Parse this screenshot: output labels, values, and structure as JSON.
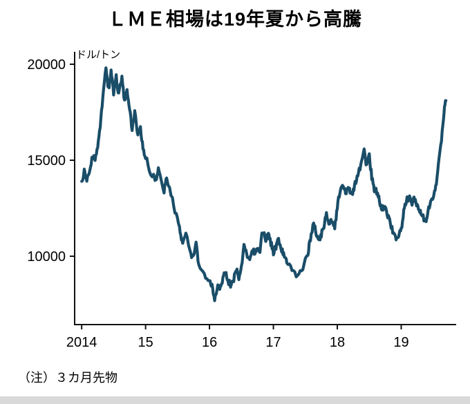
{
  "title": "ＬＭＥ相場は19年夏から高騰",
  "note": "（注）３カ月先物",
  "chart_data": {
    "type": "line",
    "title": "ＬＭＥ相場は19年夏から高騰",
    "unit_label": "ドル/トン",
    "note": "（注）３カ月先物",
    "line_color": "#1a4d68",
    "axis_color": "#111111",
    "grid": false,
    "legend": "none",
    "xlim": [
      2013.89,
      2019.86
    ],
    "ylim": [
      6440,
      20000
    ],
    "yticks": [
      {
        "value": 10000,
        "label": "10000"
      },
      {
        "value": 15000,
        "label": "15000"
      },
      {
        "value": 20000,
        "label": "20000"
      }
    ],
    "xticks": [
      {
        "value": 2014,
        "label": "2014"
      },
      {
        "value": 2015,
        "label": "15"
      },
      {
        "value": 2016,
        "label": "16"
      },
      {
        "value": 2017,
        "label": "17"
      },
      {
        "value": 2018,
        "label": "18"
      },
      {
        "value": 2019,
        "label": "19"
      }
    ],
    "points": [
      [
        2014.0,
        13900
      ],
      [
        2014.04,
        14400
      ],
      [
        2014.08,
        14050
      ],
      [
        2014.13,
        14500
      ],
      [
        2014.17,
        15200
      ],
      [
        2014.21,
        15000
      ],
      [
        2014.25,
        15600
      ],
      [
        2014.29,
        16800
      ],
      [
        2014.33,
        18300
      ],
      [
        2014.38,
        19800
      ],
      [
        2014.42,
        18700
      ],
      [
        2014.46,
        19600
      ],
      [
        2014.5,
        18500
      ],
      [
        2014.54,
        19300
      ],
      [
        2014.58,
        18400
      ],
      [
        2014.63,
        19400
      ],
      [
        2014.67,
        18000
      ],
      [
        2014.71,
        18700
      ],
      [
        2014.75,
        17600
      ],
      [
        2014.79,
        16600
      ],
      [
        2014.83,
        17500
      ],
      [
        2014.88,
        16300
      ],
      [
        2014.92,
        16700
      ],
      [
        2014.96,
        15600
      ],
      [
        2015.0,
        15200
      ],
      [
        2015.08,
        14300
      ],
      [
        2015.17,
        14000
      ],
      [
        2015.21,
        14600
      ],
      [
        2015.29,
        13400
      ],
      [
        2015.33,
        14100
      ],
      [
        2015.42,
        12900
      ],
      [
        2015.5,
        11900
      ],
      [
        2015.54,
        11300
      ],
      [
        2015.58,
        10700
      ],
      [
        2015.63,
        11300
      ],
      [
        2015.71,
        10100
      ],
      [
        2015.75,
        9900
      ],
      [
        2015.79,
        10600
      ],
      [
        2015.83,
        9600
      ],
      [
        2015.92,
        9000
      ],
      [
        2016.0,
        8700
      ],
      [
        2016.04,
        8400
      ],
      [
        2016.08,
        7700
      ],
      [
        2016.13,
        8600
      ],
      [
        2016.17,
        8350
      ],
      [
        2016.21,
        8800
      ],
      [
        2016.25,
        9200
      ],
      [
        2016.29,
        8700
      ],
      [
        2016.33,
        8500
      ],
      [
        2016.38,
        8800
      ],
      [
        2016.42,
        9300
      ],
      [
        2016.46,
        8900
      ],
      [
        2016.5,
        9400
      ],
      [
        2016.54,
        10600
      ],
      [
        2016.58,
        10200
      ],
      [
        2016.63,
        9700
      ],
      [
        2016.67,
        10300
      ],
      [
        2016.71,
        10200
      ],
      [
        2016.75,
        10400
      ],
      [
        2016.79,
        10300
      ],
      [
        2016.83,
        11300
      ],
      [
        2016.88,
        10900
      ],
      [
        2016.92,
        11100
      ],
      [
        2016.96,
        10700
      ],
      [
        2017.0,
        10200
      ],
      [
        2017.04,
        10500
      ],
      [
        2017.08,
        10900
      ],
      [
        2017.13,
        10300
      ],
      [
        2017.17,
        10000
      ],
      [
        2017.21,
        9700
      ],
      [
        2017.29,
        9300
      ],
      [
        2017.38,
        9000
      ],
      [
        2017.46,
        9400
      ],
      [
        2017.54,
        10200
      ],
      [
        2017.58,
        10900
      ],
      [
        2017.63,
        11700
      ],
      [
        2017.67,
        11200
      ],
      [
        2017.71,
        10800
      ],
      [
        2017.75,
        11100
      ],
      [
        2017.79,
        11600
      ],
      [
        2017.83,
        12200
      ],
      [
        2017.88,
        11700
      ],
      [
        2017.92,
        11900
      ],
      [
        2017.96,
        11500
      ],
      [
        2018.0,
        12600
      ],
      [
        2018.04,
        13300
      ],
      [
        2018.08,
        13700
      ],
      [
        2018.13,
        13300
      ],
      [
        2018.17,
        13600
      ],
      [
        2018.21,
        13200
      ],
      [
        2018.25,
        13400
      ],
      [
        2018.29,
        13900
      ],
      [
        2018.33,
        14300
      ],
      [
        2018.38,
        14900
      ],
      [
        2018.42,
        15500
      ],
      [
        2018.46,
        14700
      ],
      [
        2018.5,
        15200
      ],
      [
        2018.54,
        14100
      ],
      [
        2018.58,
        13500
      ],
      [
        2018.63,
        13300
      ],
      [
        2018.67,
        12700
      ],
      [
        2018.71,
        12500
      ],
      [
        2018.75,
        12700
      ],
      [
        2018.79,
        12100
      ],
      [
        2018.83,
        11700
      ],
      [
        2018.88,
        11100
      ],
      [
        2018.92,
        10900
      ],
      [
        2018.96,
        11000
      ],
      [
        2019.0,
        11400
      ],
      [
        2019.04,
        12300
      ],
      [
        2019.08,
        12900
      ],
      [
        2019.13,
        13100
      ],
      [
        2019.17,
        12800
      ],
      [
        2019.21,
        13000
      ],
      [
        2019.25,
        12700
      ],
      [
        2019.29,
        12300
      ],
      [
        2019.33,
        12100
      ],
      [
        2019.38,
        11800
      ],
      [
        2019.42,
        12400
      ],
      [
        2019.46,
        12700
      ],
      [
        2019.5,
        13100
      ],
      [
        2019.54,
        13600
      ],
      [
        2019.58,
        14600
      ],
      [
        2019.63,
        16100
      ],
      [
        2019.67,
        17600
      ],
      [
        2019.7,
        18100
      ]
    ]
  }
}
